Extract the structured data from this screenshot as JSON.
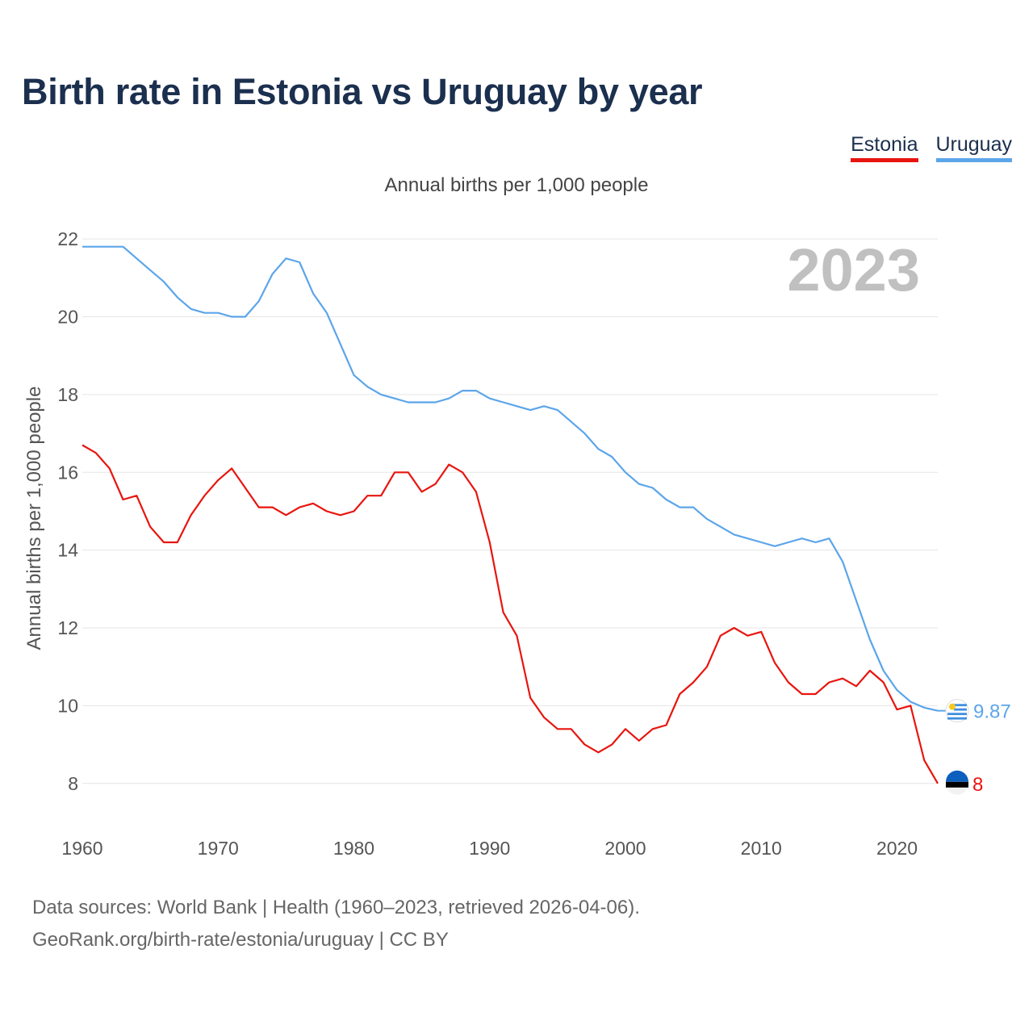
{
  "title": "Birth rate in Estonia vs Uruguay by year",
  "subtitle": "Annual births per 1,000 people",
  "legend": {
    "estonia": "Estonia",
    "uruguay": "Uruguay"
  },
  "footer": {
    "line1": "Data sources: World Bank | Health (1960–2023, retrieved 2026-04-06).",
    "line2": "GeoRank.org/birth-rate/estonia/uruguay | CC BY"
  },
  "colors": {
    "estonia": "#e8150f",
    "uruguay": "#5ca5ea",
    "grid": "#e6e6e6",
    "title": "#1b2f4e"
  },
  "chart_data": {
    "type": "line",
    "title": "Birth rate in Estonia vs Uruguay by year",
    "ylabel": "Annual births per 1,000 people",
    "xlabel": "",
    "year_label": "2023",
    "xlim": [
      1960,
      2023
    ],
    "ylim": [
      7,
      22.5
    ],
    "x_ticks": [
      1960,
      1970,
      1980,
      1990,
      2000,
      2010,
      2020
    ],
    "y_ticks": [
      8,
      10,
      12,
      14,
      16,
      18,
      20,
      22
    ],
    "x": [
      1960,
      1961,
      1962,
      1963,
      1964,
      1965,
      1966,
      1967,
      1968,
      1969,
      1970,
      1971,
      1972,
      1973,
      1974,
      1975,
      1976,
      1977,
      1978,
      1979,
      1980,
      1981,
      1982,
      1983,
      1984,
      1985,
      1986,
      1987,
      1988,
      1989,
      1990,
      1991,
      1992,
      1993,
      1994,
      1995,
      1996,
      1997,
      1998,
      1999,
      2000,
      2001,
      2002,
      2003,
      2004,
      2005,
      2006,
      2007,
      2008,
      2009,
      2010,
      2011,
      2012,
      2013,
      2014,
      2015,
      2016,
      2017,
      2018,
      2019,
      2020,
      2021,
      2022,
      2023
    ],
    "series": [
      {
        "name": "Estonia",
        "color": "#e8150f",
        "end_label": "8",
        "values": [
          16.7,
          16.5,
          16.1,
          15.3,
          15.4,
          14.6,
          14.2,
          14.2,
          14.9,
          15.4,
          15.8,
          16.1,
          15.6,
          15.1,
          15.1,
          14.9,
          15.1,
          15.2,
          15.0,
          14.9,
          15.0,
          15.4,
          15.4,
          16.0,
          16.0,
          15.5,
          15.7,
          16.2,
          16.0,
          15.5,
          14.2,
          12.4,
          11.8,
          10.2,
          9.7,
          9.4,
          9.4,
          9.0,
          8.8,
          9.0,
          9.4,
          9.1,
          9.4,
          9.5,
          10.3,
          10.6,
          11.0,
          11.8,
          12.0,
          11.8,
          11.9,
          11.1,
          10.6,
          10.3,
          10.3,
          10.6,
          10.7,
          10.5,
          10.9,
          10.6,
          9.9,
          10.0,
          8.6,
          8.0
        ]
      },
      {
        "name": "Uruguay",
        "color": "#5ca5ea",
        "end_label": "9.87",
        "values": [
          21.8,
          21.8,
          21.8,
          21.8,
          21.5,
          21.2,
          20.9,
          20.5,
          20.2,
          20.1,
          20.1,
          20.0,
          20.0,
          20.4,
          21.1,
          21.5,
          21.4,
          20.6,
          20.1,
          19.3,
          18.5,
          18.2,
          18.0,
          17.9,
          17.8,
          17.8,
          17.8,
          17.9,
          18.1,
          18.1,
          17.9,
          17.8,
          17.7,
          17.6,
          17.7,
          17.6,
          17.3,
          17.0,
          16.6,
          16.4,
          16.0,
          15.7,
          15.6,
          15.3,
          15.1,
          15.1,
          14.8,
          14.6,
          14.4,
          14.3,
          14.2,
          14.1,
          14.2,
          14.3,
          14.2,
          14.3,
          13.7,
          12.7,
          11.7,
          10.9,
          10.4,
          10.1,
          9.95,
          9.87
        ]
      }
    ]
  }
}
